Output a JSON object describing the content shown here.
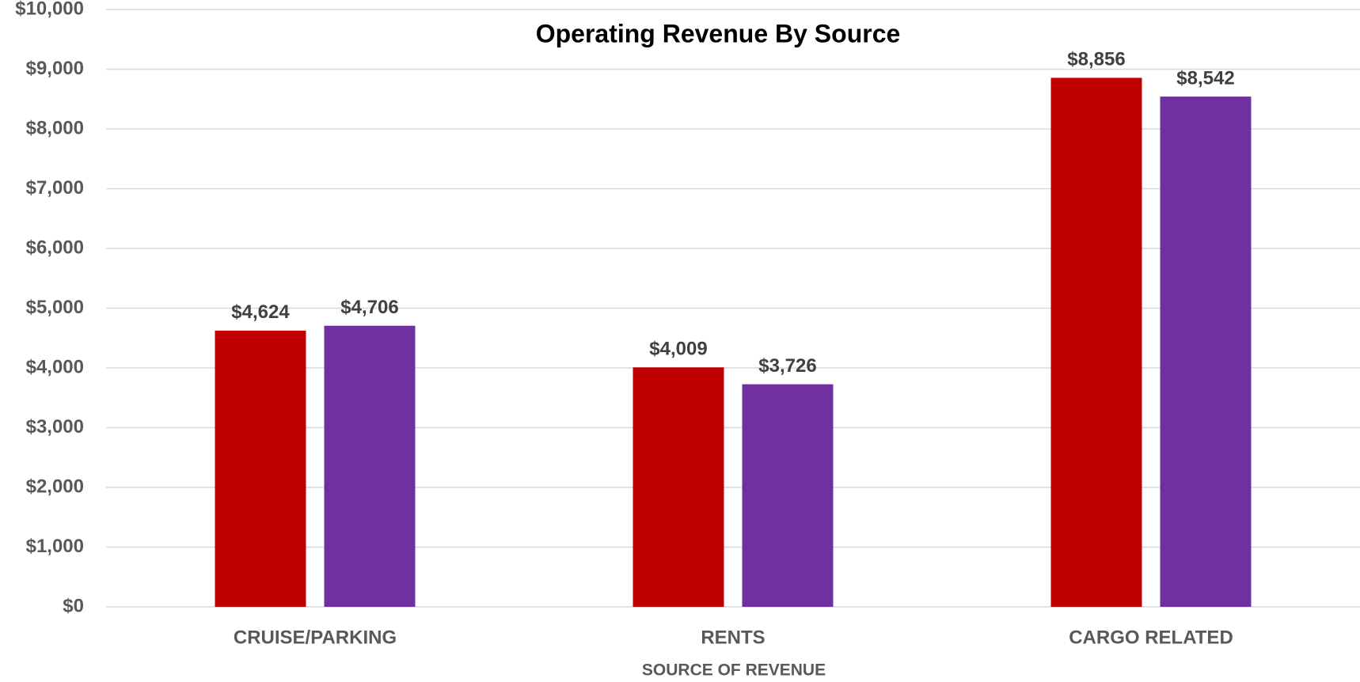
{
  "chart_data": {
    "type": "bar",
    "title": "Operating Revenue By Source",
    "x_label": "SOURCE OF REVENUE",
    "categories": [
      "CRUISE/PARKING",
      "RENTS",
      "CARGO RELATED"
    ],
    "series": [
      {
        "color": "#c00000",
        "values": [
          4624,
          4009,
          8856
        ],
        "value_labels": [
          "$4,624",
          "$4,009",
          "$8,856"
        ]
      },
      {
        "color": "#7030a0",
        "values": [
          4706,
          3726,
          8542
        ],
        "value_labels": [
          "$4,706",
          "$3,726",
          "$8,542"
        ]
      }
    ],
    "ylim": [
      0,
      10000
    ],
    "yticks": [
      {
        "value": 0,
        "label": "$0"
      },
      {
        "value": 1000,
        "label": "$1,000"
      },
      {
        "value": 2000,
        "label": "$2,000"
      },
      {
        "value": 3000,
        "label": "$3,000"
      },
      {
        "value": 4000,
        "label": "$4,000"
      },
      {
        "value": 5000,
        "label": "$5,000"
      },
      {
        "value": 6000,
        "label": "$6,000"
      },
      {
        "value": 7000,
        "label": "$7,000"
      },
      {
        "value": 8000,
        "label": "$8,000"
      },
      {
        "value": 9000,
        "label": "$9,000"
      },
      {
        "value": 10000,
        "label": "$10,000"
      }
    ],
    "grid": true
  }
}
